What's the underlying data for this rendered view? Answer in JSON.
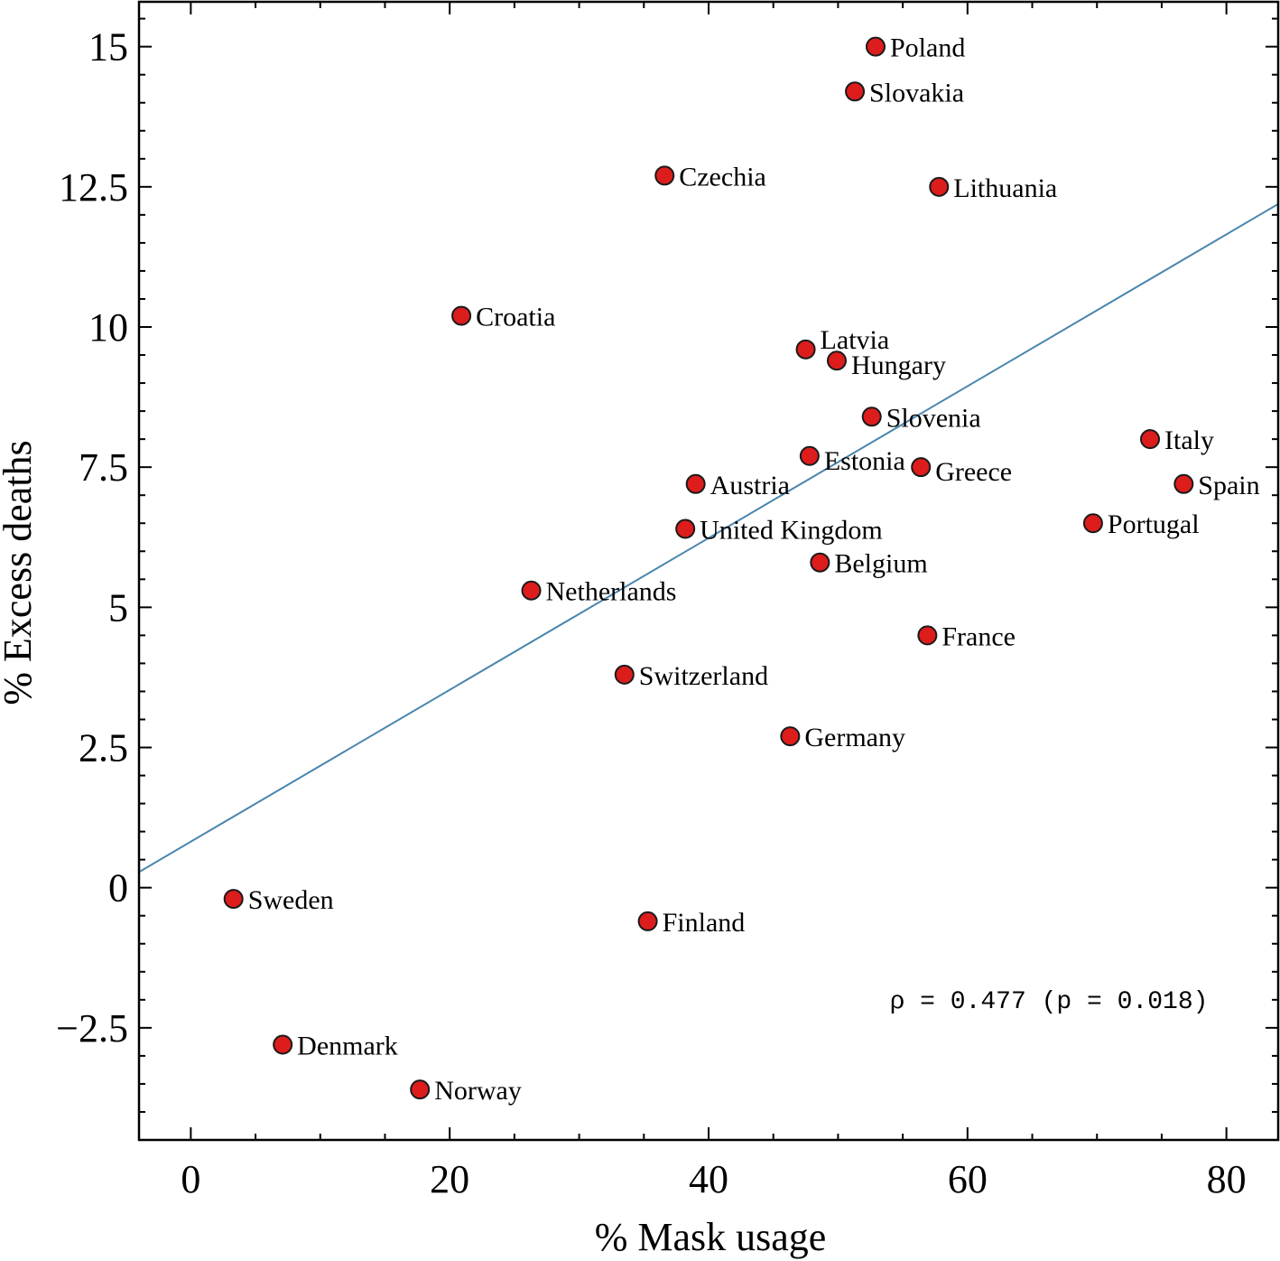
{
  "chart_data": {
    "type": "scatter",
    "title": "",
    "xlabel": "% Mask usage",
    "ylabel": "% Excess deaths",
    "xlim": [
      -4,
      84
    ],
    "ylim": [
      -4.5,
      15.8
    ],
    "x_ticks": [
      0,
      20,
      40,
      60,
      80
    ],
    "x_tick_labels": [
      "0",
      "20",
      "40",
      "60",
      "80"
    ],
    "y_ticks": [
      -2.5,
      0,
      2.5,
      5,
      7.5,
      10,
      12.5,
      15
    ],
    "y_tick_labels": [
      "−2.5",
      "0",
      "2.5",
      "5",
      "7.5",
      "10",
      "12.5",
      "15"
    ],
    "grid": false,
    "marker_color": "#dd1c1c",
    "marker_edge_color": "#1a1a1a",
    "trend_color": "#4a86ad",
    "trendline": {
      "intercept": 0.82,
      "slope": 0.1354
    },
    "annotation": "ρ = 0.477 (p = 0.018)",
    "points": [
      {
        "label": "Poland",
        "x": 52.9,
        "y": 15.0
      },
      {
        "label": "Slovakia",
        "x": 51.3,
        "y": 14.2
      },
      {
        "label": "Czechia",
        "x": 36.6,
        "y": 12.7
      },
      {
        "label": "Lithuania",
        "x": 57.8,
        "y": 12.5
      },
      {
        "label": "Croatia",
        "x": 20.9,
        "y": 10.2
      },
      {
        "label": "Latvia",
        "x": 47.5,
        "y": 9.6
      },
      {
        "label": "Hungary",
        "x": 49.9,
        "y": 9.4
      },
      {
        "label": "Slovenia",
        "x": 52.6,
        "y": 8.4
      },
      {
        "label": "Italy",
        "x": 74.1,
        "y": 8.0
      },
      {
        "label": "Estonia",
        "x": 47.8,
        "y": 7.7
      },
      {
        "label": "Greece",
        "x": 56.4,
        "y": 7.5
      },
      {
        "label": "Austria",
        "x": 39.0,
        "y": 7.2
      },
      {
        "label": "Spain",
        "x": 76.7,
        "y": 7.2
      },
      {
        "label": "Portugal",
        "x": 69.7,
        "y": 6.5
      },
      {
        "label": "United Kingdom",
        "x": 38.2,
        "y": 6.4
      },
      {
        "label": "Belgium",
        "x": 48.6,
        "y": 5.8
      },
      {
        "label": "Netherlands",
        "x": 26.3,
        "y": 5.3
      },
      {
        "label": "France",
        "x": 56.9,
        "y": 4.5
      },
      {
        "label": "Switzerland",
        "x": 33.5,
        "y": 3.8
      },
      {
        "label": "Germany",
        "x": 46.3,
        "y": 2.7
      },
      {
        "label": "Sweden",
        "x": 3.3,
        "y": -0.2
      },
      {
        "label": "Finland",
        "x": 35.3,
        "y": -0.6
      },
      {
        "label": "Denmark",
        "x": 7.1,
        "y": -2.8
      },
      {
        "label": "Norway",
        "x": 17.7,
        "y": -3.6
      }
    ]
  }
}
